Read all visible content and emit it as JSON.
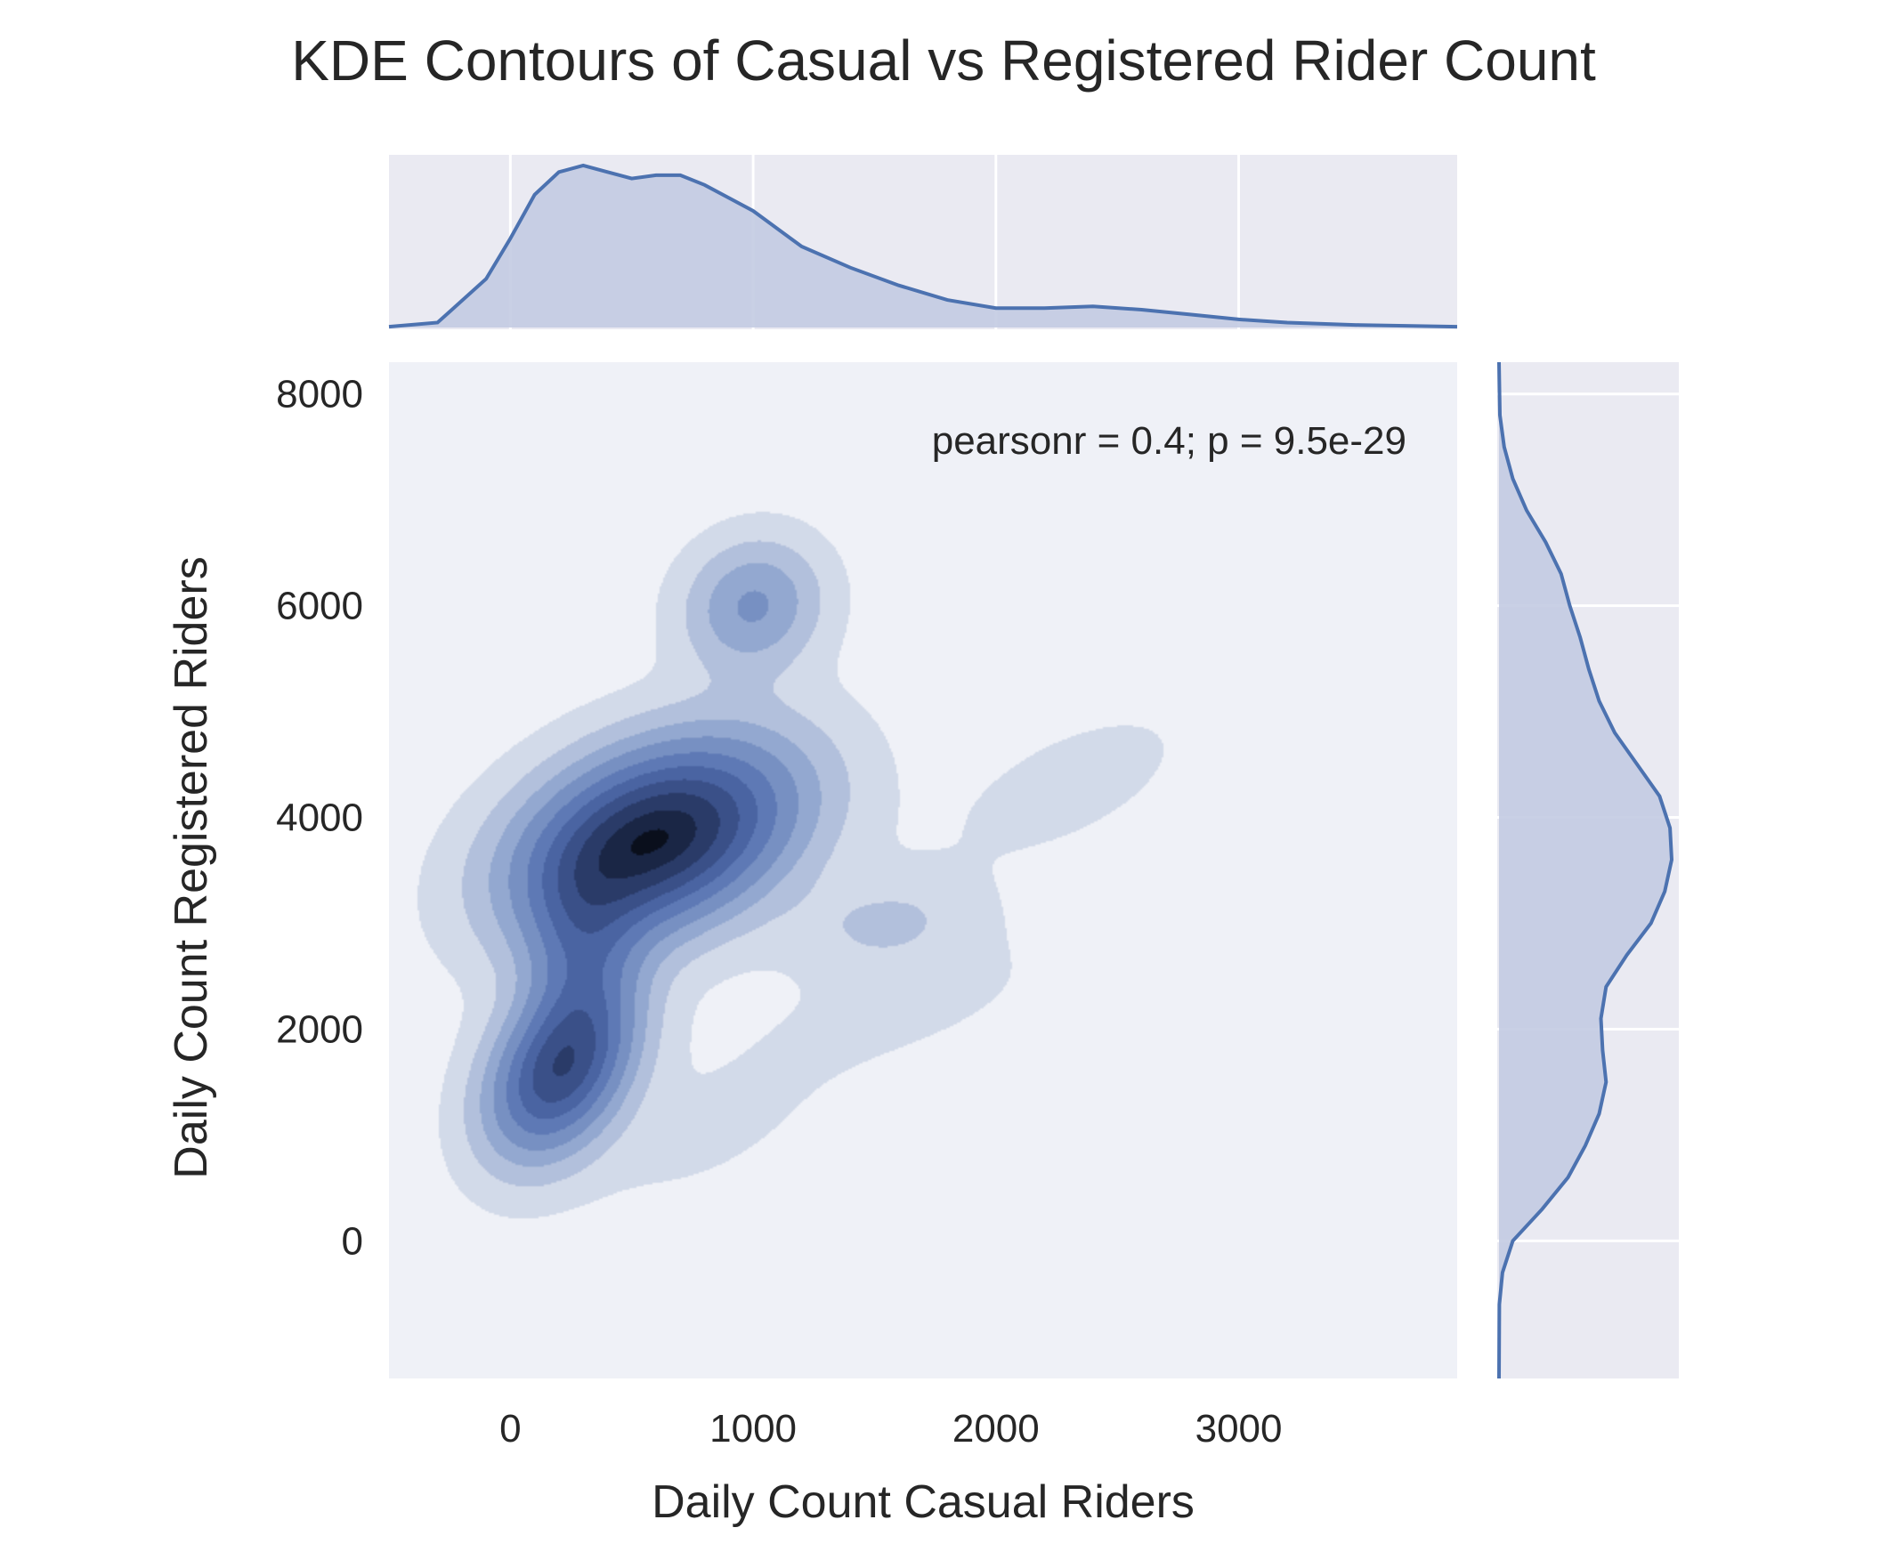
{
  "chart_data": {
    "type": "kde-joint",
    "title": "KDE Contours of Casual vs Registered Rider Count",
    "xlabel": "Daily Count Casual Riders",
    "ylabel": "Daily Count Registered Riders",
    "annotation": "pearsonr = 0.4; p = 9.5e-29",
    "xlim": [
      -500,
      3900
    ],
    "ylim": [
      -1300,
      8300
    ],
    "xticks": [
      0,
      1000,
      2000,
      3000
    ],
    "xtick_labels": [
      "0",
      "1000",
      "2000",
      "3000"
    ],
    "yticks": [
      0,
      2000,
      4000,
      6000,
      8000
    ],
    "ytick_labels": [
      "0",
      "2000",
      "4000",
      "6000",
      "8000"
    ],
    "grid": true,
    "colors": {
      "line": "#4c72b0",
      "fill": "#c3cbe2",
      "panel_bg": "#eaeaf2",
      "kde_bg": "#eff1f7",
      "levels": [
        "#d2dae9",
        "#b2c0dc",
        "#93a8d0",
        "#7790c2",
        "#5e79b5",
        "#4a64a2",
        "#3a5088",
        "#2a3b68",
        "#1a2645",
        "#0a0f1c"
      ]
    },
    "density_components": [
      {
        "mx": 600,
        "my": 3800,
        "sx": 380,
        "sy": 620,
        "rho": 0.35,
        "w": 1.0
      },
      {
        "mx": 200,
        "my": 1600,
        "sx": 200,
        "sy": 550,
        "rho": 0.35,
        "w": 0.75
      },
      {
        "mx": 1000,
        "my": 6000,
        "sx": 190,
        "sy": 420,
        "rho": 0.1,
        "w": 0.32
      },
      {
        "mx": 300,
        "my": 2700,
        "sx": 160,
        "sy": 600,
        "rho": 0.0,
        "w": 0.3
      },
      {
        "mx": 1550,
        "my": 3000,
        "sx": 260,
        "sy": 320,
        "rho": 0.2,
        "w": 0.12
      },
      {
        "mx": 2300,
        "my": 4300,
        "sx": 380,
        "sy": 550,
        "rho": 0.6,
        "w": 0.06
      },
      {
        "mx": 1600,
        "my": 2200,
        "sx": 500,
        "sy": 500,
        "rho": 0.6,
        "w": 0.05
      },
      {
        "mx": 800,
        "my": 1000,
        "sx": 350,
        "sy": 500,
        "rho": 0.6,
        "w": 0.05
      }
    ],
    "contour_levels": [
      0.035,
      0.11,
      0.2,
      0.3,
      0.42,
      0.54,
      0.66,
      0.78,
      0.9,
      0.985
    ],
    "marginal_x": {
      "x": [
        -500,
        -300,
        -100,
        0,
        100,
        200,
        300,
        400,
        500,
        600,
        700,
        800,
        900,
        1000,
        1200,
        1400,
        1600,
        1800,
        2000,
        2200,
        2400,
        2600,
        2800,
        3000,
        3200,
        3500,
        3900
      ],
      "density": [
        0.005,
        0.03,
        0.3,
        0.55,
        0.82,
        0.96,
        1.0,
        0.96,
        0.92,
        0.94,
        0.94,
        0.88,
        0.8,
        0.72,
        0.5,
        0.37,
        0.26,
        0.17,
        0.12,
        0.12,
        0.13,
        0.11,
        0.08,
        0.05,
        0.03,
        0.015,
        0.005
      ]
    },
    "marginal_y": {
      "y": [
        -1300,
        -600,
        -300,
        0,
        300,
        600,
        900,
        1200,
        1500,
        1800,
        2100,
        2400,
        2700,
        3000,
        3300,
        3600,
        3900,
        4200,
        4500,
        4800,
        5100,
        5400,
        5700,
        6000,
        6300,
        6600,
        6900,
        7200,
        7500,
        7800,
        8300
      ],
      "density": [
        0.0,
        0.002,
        0.02,
        0.08,
        0.25,
        0.4,
        0.5,
        0.58,
        0.62,
        0.6,
        0.59,
        0.62,
        0.74,
        0.88,
        0.96,
        1.0,
        0.99,
        0.93,
        0.8,
        0.67,
        0.58,
        0.52,
        0.47,
        0.41,
        0.36,
        0.27,
        0.16,
        0.08,
        0.03,
        0.005,
        0.0
      ]
    }
  }
}
